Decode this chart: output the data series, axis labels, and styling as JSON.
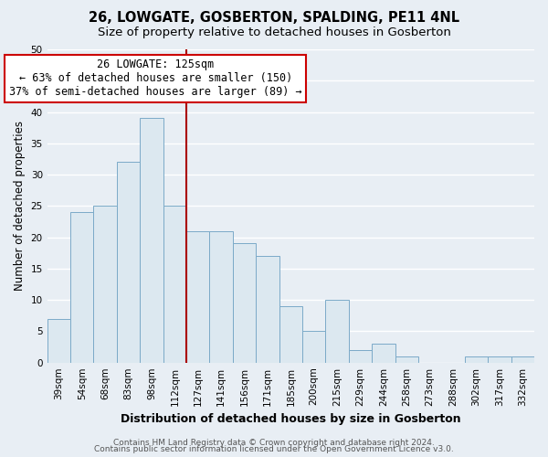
{
  "title": "26, LOWGATE, GOSBERTON, SPALDING, PE11 4NL",
  "subtitle": "Size of property relative to detached houses in Gosberton",
  "xlabel": "Distribution of detached houses by size in Gosberton",
  "ylabel": "Number of detached properties",
  "categories": [
    "39sqm",
    "54sqm",
    "68sqm",
    "83sqm",
    "98sqm",
    "112sqm",
    "127sqm",
    "141sqm",
    "156sqm",
    "171sqm",
    "185sqm",
    "200sqm",
    "215sqm",
    "229sqm",
    "244sqm",
    "258sqm",
    "273sqm",
    "288sqm",
    "302sqm",
    "317sqm",
    "332sqm"
  ],
  "values": [
    7,
    24,
    25,
    32,
    39,
    25,
    21,
    21,
    19,
    17,
    9,
    5,
    10,
    2,
    3,
    1,
    0,
    0,
    1,
    1,
    1
  ],
  "bar_color": "#dce8f0",
  "bar_edge_color": "#7baac8",
  "marker_line_label": "26 LOWGATE: 125sqm",
  "annotation_line1": "← 63% of detached houses are smaller (150)",
  "annotation_line2": "37% of semi-detached houses are larger (89) →",
  "marker_line_color": "#aa0000",
  "box_edge_color": "#cc0000",
  "ylim": [
    0,
    50
  ],
  "yticks": [
    0,
    5,
    10,
    15,
    20,
    25,
    30,
    35,
    40,
    45,
    50
  ],
  "footer1": "Contains HM Land Registry data © Crown copyright and database right 2024.",
  "footer2": "Contains public sector information licensed under the Open Government Licence v3.0.",
  "bg_color": "#e8eef4",
  "plot_bg_color": "#e8eef4",
  "grid_color": "#ffffff",
  "title_fontsize": 10.5,
  "subtitle_fontsize": 9.5,
  "xlabel_fontsize": 9,
  "ylabel_fontsize": 8.5,
  "tick_fontsize": 7.5,
  "footer_fontsize": 6.5,
  "annotation_fontsize": 8.5
}
